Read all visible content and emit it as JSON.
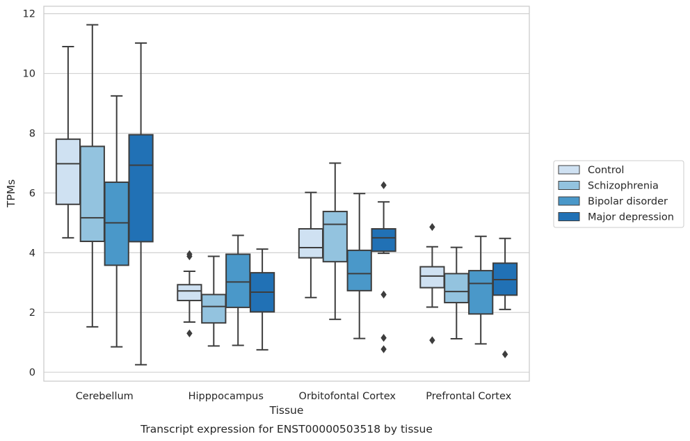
{
  "chart_data": {
    "type": "box",
    "xlabel": "Tissue",
    "ylabel": "TPMs",
    "caption": "Transcript expression for ENST00000503518 by tissue",
    "ylim": [
      -0.3,
      12.25
    ],
    "yticks": [
      0,
      2,
      4,
      6,
      8,
      10,
      12
    ],
    "grid": "horizontal",
    "legend_position": "right",
    "categories": [
      "Cerebellum",
      "Hipppocampus",
      "Orbitofontal Cortex",
      "Prefrontal Cortex"
    ],
    "series": [
      {
        "name": "Control",
        "color": "#cfe1f2",
        "boxes": [
          {
            "whislo": 4.5,
            "q1": 5.62,
            "med": 6.98,
            "q3": 7.8,
            "whishi": 10.9,
            "fliers": []
          },
          {
            "whislo": 1.68,
            "q1": 2.4,
            "med": 2.72,
            "q3": 2.93,
            "whishi": 3.38,
            "fliers": [
              1.3,
              3.88,
              3.95
            ]
          },
          {
            "whislo": 2.5,
            "q1": 3.83,
            "med": 4.17,
            "q3": 4.8,
            "whishi": 6.02,
            "fliers": []
          },
          {
            "whislo": 2.18,
            "q1": 2.83,
            "med": 3.22,
            "q3": 3.53,
            "whishi": 4.2,
            "fliers": [
              1.07,
              4.86
            ]
          }
        ]
      },
      {
        "name": "Schizophrenia",
        "color": "#93c3df",
        "boxes": [
          {
            "whislo": 1.52,
            "q1": 4.38,
            "med": 5.17,
            "q3": 7.56,
            "whishi": 11.63,
            "fliers": []
          },
          {
            "whislo": 0.88,
            "q1": 1.65,
            "med": 2.2,
            "q3": 2.6,
            "whishi": 3.88,
            "fliers": []
          },
          {
            "whislo": 1.77,
            "q1": 3.7,
            "med": 4.95,
            "q3": 5.38,
            "whishi": 7.0,
            "fliers": []
          },
          {
            "whislo": 1.12,
            "q1": 2.33,
            "med": 2.7,
            "q3": 3.3,
            "whishi": 4.18,
            "fliers": []
          }
        ]
      },
      {
        "name": "Bipolar disorder",
        "color": "#4a98c9",
        "boxes": [
          {
            "whislo": 0.85,
            "q1": 3.58,
            "med": 5.0,
            "q3": 6.36,
            "whishi": 9.25,
            "fliers": []
          },
          {
            "whislo": 0.9,
            "q1": 2.17,
            "med": 3.02,
            "q3": 3.95,
            "whishi": 4.58,
            "fliers": []
          },
          {
            "whislo": 1.13,
            "q1": 2.73,
            "med": 3.3,
            "q3": 4.08,
            "whishi": 5.98,
            "fliers": []
          },
          {
            "whislo": 0.95,
            "q1": 1.95,
            "med": 2.97,
            "q3": 3.4,
            "whishi": 4.55,
            "fliers": []
          }
        ]
      },
      {
        "name": "Major depression",
        "color": "#2171b5",
        "boxes": [
          {
            "whislo": 0.25,
            "q1": 4.37,
            "med": 6.93,
            "q3": 7.95,
            "whishi": 11.02,
            "fliers": []
          },
          {
            "whislo": 0.75,
            "q1": 2.02,
            "med": 2.68,
            "q3": 3.33,
            "whishi": 4.12,
            "fliers": []
          },
          {
            "whislo": 3.98,
            "q1": 4.05,
            "med": 4.5,
            "q3": 4.8,
            "whishi": 5.7,
            "fliers": [
              0.77,
              1.15,
              2.6,
              6.26
            ]
          },
          {
            "whislo": 2.1,
            "q1": 2.58,
            "med": 3.1,
            "q3": 3.65,
            "whishi": 4.48,
            "fliers": [
              0.6
            ]
          }
        ]
      }
    ]
  }
}
